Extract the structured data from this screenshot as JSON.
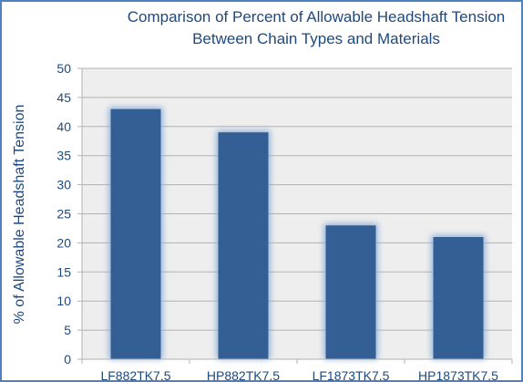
{
  "chart_data": {
    "type": "bar",
    "title_lines": [
      "Comparison of Percent of Allowable Headshaft Tension",
      "Between Chain Types and Materials"
    ],
    "xlabel": "",
    "ylabel": "% of Allowable Headshaft Tension",
    "categories": [
      "LF882TK7.5",
      "HP882TK7.5",
      "LF1873TK7.5",
      "HP1873TK7.5"
    ],
    "values": [
      43,
      39,
      23,
      21
    ],
    "ylim": [
      0,
      50
    ],
    "yticks": [
      0,
      5,
      10,
      15,
      20,
      25,
      30,
      35,
      40,
      45,
      50
    ],
    "grid": true,
    "legend": "none"
  },
  "colors": {
    "frame": "#4f81bd",
    "text": "#1f497d",
    "bar": "#345f95",
    "bar_glow": "#7fa6d6",
    "plot_bg": "#eeeeee",
    "grid": "#b2b2b2"
  }
}
